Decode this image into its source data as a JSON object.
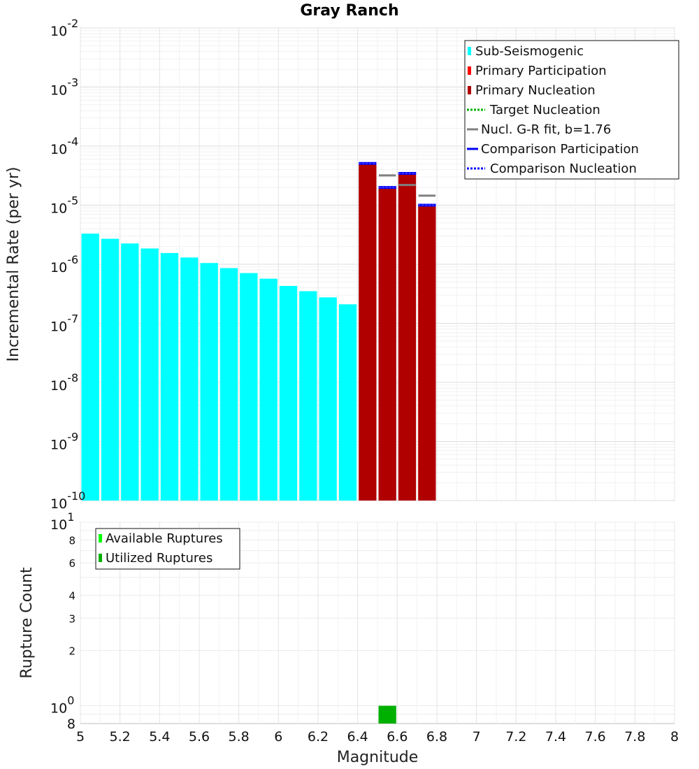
{
  "chart_data": [
    {
      "type": "bar",
      "title": "Gray Ranch",
      "xlabel": "",
      "ylabel": "Incremental Rate (per yr)",
      "yscale": "log",
      "xlim": [
        5,
        8
      ],
      "ylim": [
        1e-10,
        0.01
      ],
      "y_ticks": [
        {
          "base": "10",
          "exp": "-2",
          "value": 0.01
        },
        {
          "base": "10",
          "exp": "-3",
          "value": 0.001
        },
        {
          "base": "10",
          "exp": "-4",
          "value": 0.0001
        },
        {
          "base": "10",
          "exp": "-5",
          "value": 1e-05
        },
        {
          "base": "10",
          "exp": "-6",
          "value": 1e-06
        },
        {
          "base": "10",
          "exp": "-7",
          "value": 1e-07
        },
        {
          "base": "10",
          "exp": "-8",
          "value": 1e-08
        },
        {
          "base": "10",
          "exp": "-9",
          "value": 1e-09
        },
        {
          "base": "10",
          "exp": "-10",
          "value": 1e-10
        }
      ],
      "grid": true,
      "legend_position": "top-right",
      "legend": [
        {
          "label": "Sub-Seismogenic",
          "color": "#00ffff",
          "style": "bar"
        },
        {
          "label": "Primary Participation",
          "color": "#ff0000",
          "style": "bar"
        },
        {
          "label": "Primary Nucleation",
          "color": "#b00000",
          "style": "bar"
        },
        {
          "label": "Target Nucleation",
          "color": "#00b000",
          "style": "dotted"
        },
        {
          "label": "Nucl. G-R fit, b=1.76",
          "color": "#808080",
          "style": "solid"
        },
        {
          "label": "Comparison Participation",
          "color": "#0000ff",
          "style": "solid"
        },
        {
          "label": "Comparison Nucleation",
          "color": "#0000ff",
          "style": "dotted"
        }
      ],
      "series": [
        {
          "name": "Sub-Seismogenic",
          "color": "#00ffff",
          "x": [
            5.05,
            5.15,
            5.25,
            5.35,
            5.45,
            5.55,
            5.65,
            5.75,
            5.85,
            5.95,
            6.05,
            6.15,
            6.25,
            6.35
          ],
          "values": [
            3.3e-06,
            2.7e-06,
            2.25e-06,
            1.85e-06,
            1.55e-06,
            1.3e-06,
            1.05e-06,
            8.6e-07,
            7.1e-07,
            5.7e-07,
            4.3e-07,
            3.5e-07,
            2.75e-07,
            2.1e-07
          ]
        },
        {
          "name": "Primary Nucleation",
          "color": "#b00000",
          "x": [
            6.45,
            6.55,
            6.65,
            6.75
          ],
          "values": [
            5e-05,
            2e-05,
            3.5e-05,
            1e-05
          ]
        },
        {
          "name": "Comparison Participation",
          "color": "#0000ff",
          "x": [
            6.45,
            6.55,
            6.65,
            6.75
          ],
          "values": [
            5.1e-05,
            2e-05,
            3.45e-05,
            1e-05
          ]
        },
        {
          "name": "Comparison Nucleation",
          "color": "#0000ff",
          "x": [
            6.45,
            6.55,
            6.65,
            6.75
          ],
          "values": [
            5.1e-05,
            2e-05,
            3.45e-05,
            1e-05
          ]
        },
        {
          "name": "Nucl. G-R fit, b=1.76",
          "color": "#808080",
          "x": [
            6.55,
            6.65,
            6.75
          ],
          "values": [
            3.2e-05,
            2.2e-05,
            1.45e-05
          ]
        }
      ]
    },
    {
      "type": "bar",
      "title": "",
      "xlabel": "Magnitude",
      "ylabel": "Rupture Count",
      "yscale": "log",
      "xlim": [
        5,
        8
      ],
      "ylim": [
        0.8,
        10
      ],
      "x_ticks": [
        "5",
        "5.2",
        "5.4",
        "5.6",
        "5.8",
        "6",
        "6.2",
        "6.4",
        "6.6",
        "6.8",
        "7",
        "7.2",
        "7.4",
        "7.6",
        "7.8",
        "8"
      ],
      "y_major_ticks": [
        {
          "base": "10",
          "exp": "1",
          "value": 10
        },
        {
          "base": "10",
          "exp": "0",
          "value": 1
        }
      ],
      "y_minor_ticks": [
        {
          "label": "8",
          "value": 8
        },
        {
          "label": "6",
          "value": 6
        },
        {
          "label": "4",
          "value": 4
        },
        {
          "label": "3",
          "value": 3
        },
        {
          "label": "2",
          "value": 2
        },
        {
          "label": "8",
          "value": 0.8
        }
      ],
      "grid": true,
      "legend_position": "top-left",
      "legend": [
        {
          "label": "Available Ruptures",
          "color": "#00ff00",
          "style": "bar"
        },
        {
          "label": "Utilized Ruptures",
          "color": "#00b000",
          "style": "bar"
        }
      ],
      "series": [
        {
          "name": "Utilized Ruptures",
          "color": "#00b000",
          "x": [
            6.55
          ],
          "values": [
            1
          ]
        }
      ]
    }
  ]
}
